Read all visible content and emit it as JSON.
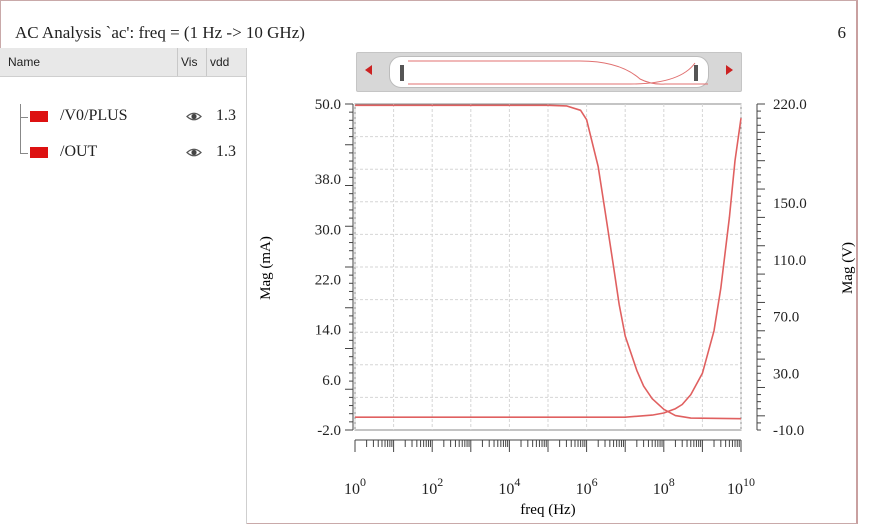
{
  "window": {
    "title": "AC Analysis `ac': freq = (1 Hz -> 10 GHz)",
    "corner_number": "6"
  },
  "signal_panel": {
    "columns": {
      "name": "Name",
      "vis": "Vis",
      "vdd": "vdd"
    },
    "signals": [
      {
        "name": "/V0/PLUS",
        "color": "#dd1111",
        "visible_icon": "eye-icon",
        "vdd": "1.3"
      },
      {
        "name": "/OUT",
        "color": "#dd1111",
        "visible_icon": "eye-icon",
        "vdd": "1.3"
      }
    ]
  },
  "navigator": {
    "left_arrow_icon": "arrow-left-icon",
    "right_arrow_icon": "arrow-right-icon"
  },
  "chart_data": {
    "type": "line",
    "xlabel": "freq (Hz)",
    "ylabel_left": "Mag (mA)",
    "ylabel_right": "Mag (V)",
    "x_scale": "log",
    "x_range": [
      1,
      10000000000
    ],
    "x_ticks": [
      {
        "value": 1,
        "base": "10",
        "exp": "0"
      },
      {
        "value": 100,
        "base": "10",
        "exp": "2"
      },
      {
        "value": 10000,
        "base": "10",
        "exp": "4"
      },
      {
        "value": 1000000,
        "base": "10",
        "exp": "6"
      },
      {
        "value": 100000000,
        "base": "10",
        "exp": "8"
      },
      {
        "value": 10000000000,
        "base": "10",
        "exp": "10"
      }
    ],
    "y_left_range": [
      -2.0,
      50.0
    ],
    "y_left_ticks": [
      "50.0",
      "38.0",
      "30.0",
      "22.0",
      "14.0",
      "6.0",
      "-2.0"
    ],
    "y_left_tick_values": [
      50,
      38,
      30,
      22,
      14,
      6,
      -2
    ],
    "y_right_range": [
      -10.0,
      220.0
    ],
    "y_right_ticks": [
      "220.0",
      "150.0",
      "110.0",
      "70.0",
      "30.0",
      "-10.0"
    ],
    "y_right_tick_values": [
      220,
      150,
      110,
      70,
      30,
      -10
    ],
    "grid": true,
    "line_color": "#e06060",
    "series": [
      {
        "axis": "left",
        "points": [
          [
            1,
            49.8
          ],
          [
            100000,
            49.8
          ],
          [
            300000,
            49.7
          ],
          [
            700000,
            49.0
          ],
          [
            1000000,
            47.5
          ],
          [
            2000000,
            40
          ],
          [
            3000000,
            33
          ],
          [
            5000000,
            24
          ],
          [
            7000000,
            18
          ],
          [
            10000000,
            13
          ],
          [
            20000000,
            7.5
          ],
          [
            30000000,
            5
          ],
          [
            50000000,
            3
          ],
          [
            100000000,
            1.3
          ],
          [
            200000000,
            0.3
          ],
          [
            500000000,
            -0.1
          ],
          [
            10000000000,
            -0.2
          ]
        ]
      },
      {
        "axis": "right",
        "points": [
          [
            1,
            -1
          ],
          [
            10000000,
            -1
          ],
          [
            50000000,
            0.5
          ],
          [
            100000000,
            2
          ],
          [
            200000000,
            5
          ],
          [
            300000000,
            8
          ],
          [
            500000000,
            15
          ],
          [
            1000000000,
            30
          ],
          [
            2000000000,
            60
          ],
          [
            3000000000,
            90
          ],
          [
            5000000000,
            140
          ],
          [
            7000000000,
            180
          ],
          [
            10000000000,
            210
          ]
        ]
      }
    ]
  }
}
